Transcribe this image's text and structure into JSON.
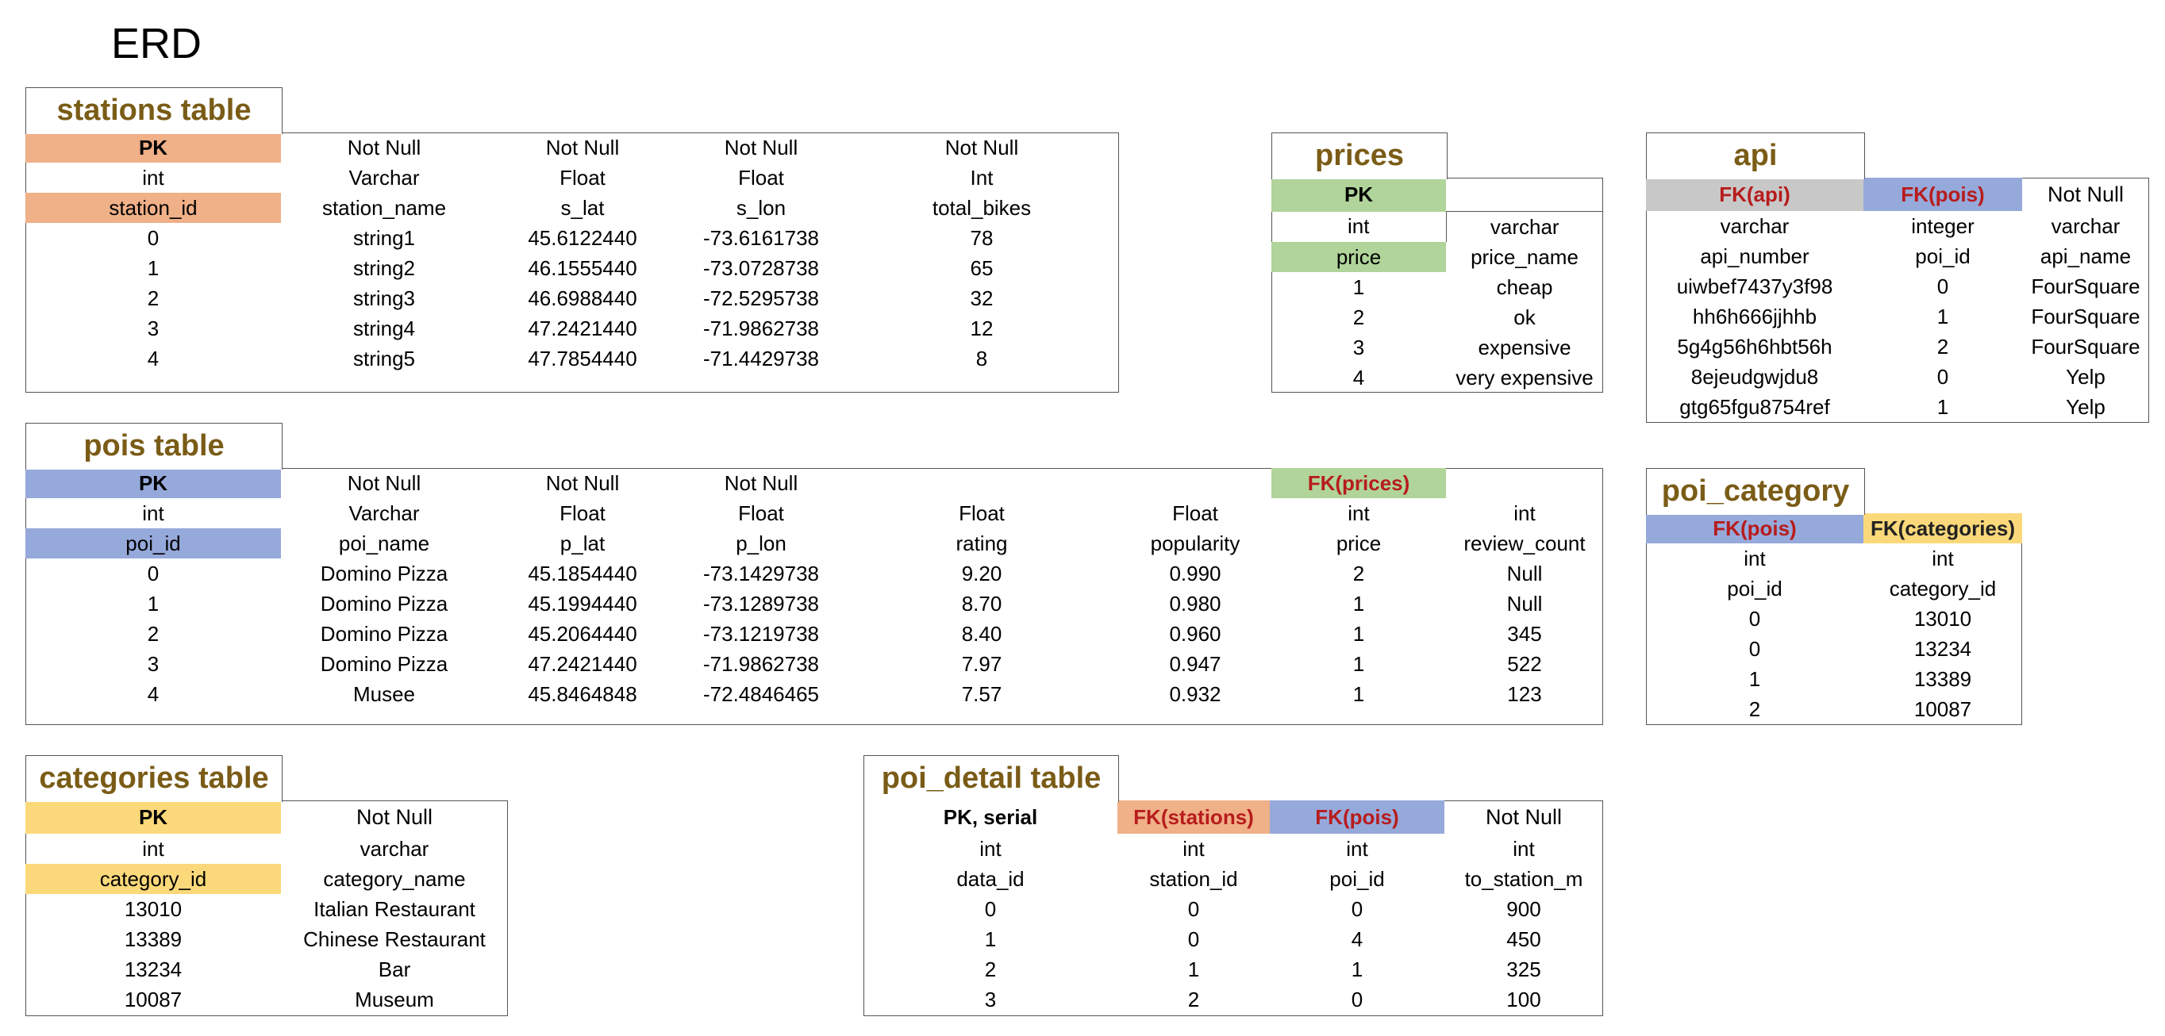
{
  "title": "ERD",
  "tables": {
    "stations": {
      "name": "stations table",
      "headers": [
        "PK",
        "Not Null",
        "Not Null",
        "Not Null",
        "Not Null"
      ],
      "types": [
        "int",
        "Varchar",
        "Float",
        "Float",
        "Int"
      ],
      "columns": [
        "station_id",
        "station_name",
        "s_lat",
        "s_lon",
        "total_bikes"
      ],
      "rows": [
        [
          "0",
          "string1",
          "45.6122440",
          "-73.6161738",
          "78"
        ],
        [
          "1",
          "string2",
          "46.1555440",
          "-73.0728738",
          "65"
        ],
        [
          "2",
          "string3",
          "46.6988440",
          "-72.5295738",
          "32"
        ],
        [
          "3",
          "string4",
          "47.2421440",
          "-71.9862738",
          "12"
        ],
        [
          "4",
          "string5",
          "47.7854440",
          "-71.4429738",
          "8"
        ]
      ],
      "key_color": "#f0b088"
    },
    "prices": {
      "name": "prices",
      "headers": [
        "PK",
        ""
      ],
      "types": [
        "int",
        "varchar"
      ],
      "columns": [
        "price",
        "price_name"
      ],
      "rows": [
        [
          "1",
          "cheap"
        ],
        [
          "2",
          "ok"
        ],
        [
          "3",
          "expensive"
        ],
        [
          "4",
          "very expensive"
        ]
      ],
      "key_color": "#b0d49a"
    },
    "api": {
      "name": "api",
      "headers": [
        "FK(api)",
        "FK(pois)",
        "Not Null"
      ],
      "types": [
        "varchar",
        "integer",
        "varchar"
      ],
      "columns": [
        "api_number",
        "poi_id",
        "api_name"
      ],
      "rows": [
        [
          "uiwbef7437y3f98",
          "0",
          "FourSquare"
        ],
        [
          "hh6h666jjhhb",
          "1",
          "FourSquare"
        ],
        [
          "5g4g56h6hbt56h",
          "2",
          "FourSquare"
        ],
        [
          "8ejeudgwjdu8",
          "0",
          "Yelp"
        ],
        [
          "gtg65fgu8754ref",
          "1",
          "Yelp"
        ]
      ]
    },
    "pois": {
      "name": "pois table",
      "headers": [
        "PK",
        "Not Null",
        "Not Null",
        "Not Null",
        "",
        "",
        "FK(prices)",
        ""
      ],
      "types": [
        "int",
        "Varchar",
        "Float",
        "Float",
        "Float",
        "Float",
        "int",
        "int"
      ],
      "columns": [
        "poi_id",
        "poi_name",
        "p_lat",
        "p_lon",
        "rating",
        "popularity",
        "price",
        "review_count"
      ],
      "rows": [
        [
          "0",
          "Domino Pizza",
          "45.1854440",
          "-73.1429738",
          "9.20",
          "0.990",
          "2",
          "Null"
        ],
        [
          "1",
          "Domino Pizza",
          "45.1994440",
          "-73.1289738",
          "8.70",
          "0.980",
          "1",
          "Null"
        ],
        [
          "2",
          "Domino Pizza",
          "45.2064440",
          "-73.1219738",
          "8.40",
          "0.960",
          "1",
          "345"
        ],
        [
          "3",
          "Domino Pizza",
          "47.2421440",
          "-71.9862738",
          "7.97",
          "0.947",
          "1",
          "522"
        ],
        [
          "4",
          "Musee",
          "45.8464848",
          "-72.4846465",
          "7.57",
          "0.932",
          "1",
          "123"
        ]
      ],
      "key_color": "#96a9db"
    },
    "poi_category": {
      "name": "poi_category",
      "headers": [
        "FK(pois)",
        "FK(categories)"
      ],
      "types": [
        "int",
        "int"
      ],
      "columns": [
        "poi_id",
        "category_id"
      ],
      "rows": [
        [
          "0",
          "13010"
        ],
        [
          "0",
          "13234"
        ],
        [
          "1",
          "13389"
        ],
        [
          "2",
          "10087"
        ]
      ]
    },
    "categories": {
      "name": "categories table",
      "headers": [
        "PK",
        "Not Null"
      ],
      "types": [
        "int",
        "varchar"
      ],
      "columns": [
        "category_id",
        "category_name"
      ],
      "rows": [
        [
          "13010",
          "Italian Restaurant"
        ],
        [
          "13389",
          "Chinese Restaurant"
        ],
        [
          "13234",
          "Bar"
        ],
        [
          "10087",
          "Museum"
        ]
      ],
      "key_color": "#fbd97a"
    },
    "poi_detail": {
      "name": "poi_detail table",
      "headers": [
        "PK, serial",
        "FK(stations)",
        "FK(pois)",
        "Not Null"
      ],
      "types": [
        "int",
        "int",
        "int",
        "int"
      ],
      "columns": [
        "data_id",
        "station_id",
        "poi_id",
        "to_station_m"
      ],
      "rows": [
        [
          "0",
          "0",
          "0",
          "900"
        ],
        [
          "1",
          "0",
          "4",
          "450"
        ],
        [
          "2",
          "1",
          "1",
          "325"
        ],
        [
          "3",
          "2",
          "0",
          "100"
        ]
      ]
    }
  }
}
